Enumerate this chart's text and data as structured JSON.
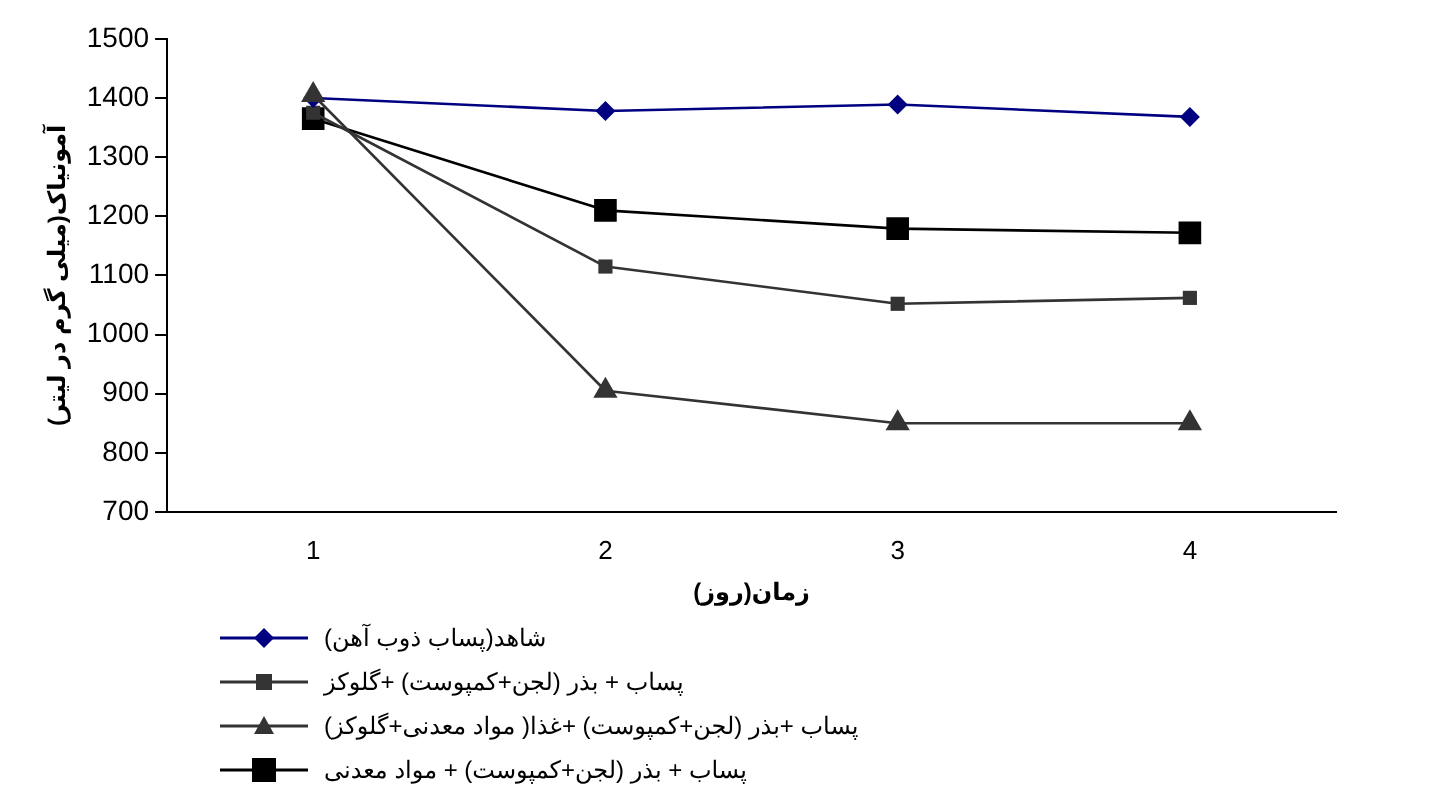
{
  "chart_data": {
    "type": "line",
    "xlabel": "زمان(روز)",
    "ylabel": "آمونیاک(میلی گرم در لیتر)",
    "categories": [
      "1",
      "2",
      "3",
      "4"
    ],
    "series": [
      {
        "name": "شاهد(پساب ذوب آهن)",
        "color": "#000080",
        "marker": "diamond",
        "values": [
          1400,
          1378,
          1389,
          1368
        ]
      },
      {
        "name": "پساب + بذر (لجن+کمپوست) +گلوکز",
        "color": "#333333",
        "marker": "square",
        "values": [
          1375,
          1115,
          1052,
          1062
        ]
      },
      {
        "name": "پساب +بذر (لجن+کمپوست) +غذا( مواد معدنی+گلوکز)",
        "color": "#333333",
        "marker": "triangle",
        "values": [
          1405,
          905,
          850,
          850
        ]
      },
      {
        "name": "پساب + بذر (لجن+کمپوست) + مواد معدنی",
        "color": "#000000",
        "marker": "square",
        "values": [
          1365,
          1210,
          1179,
          1172
        ]
      }
    ],
    "ylim": [
      700,
      1500
    ],
    "yticks": [
      700,
      800,
      900,
      1000,
      1100,
      1200,
      1300,
      1400,
      1500
    ],
    "grid": false,
    "legend": "bottom"
  }
}
